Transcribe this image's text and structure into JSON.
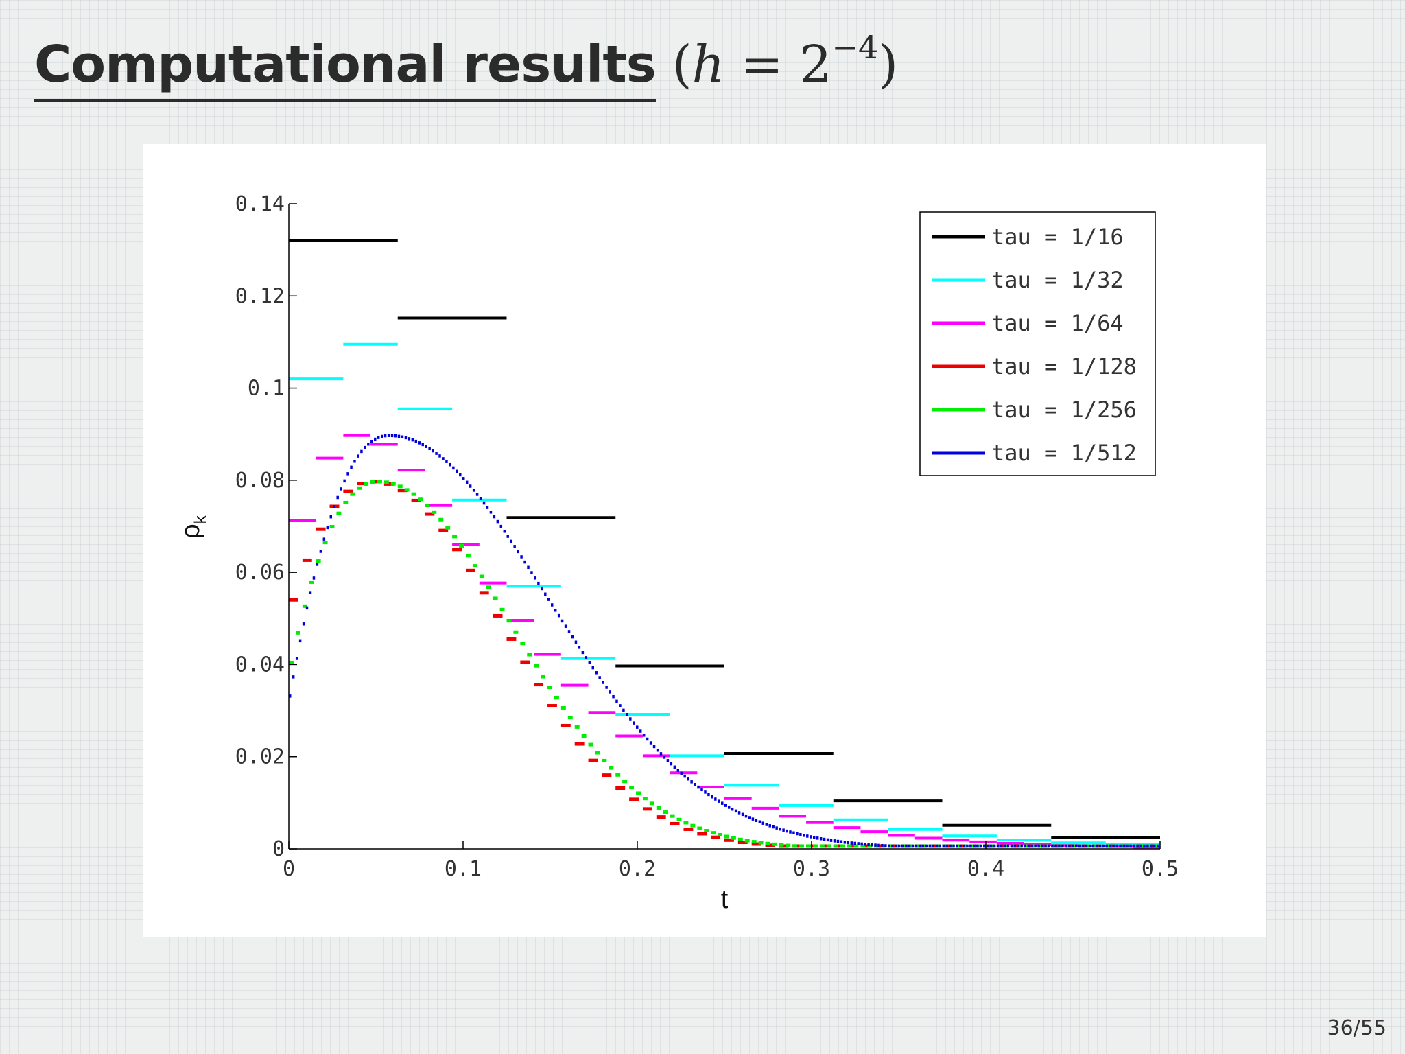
{
  "slide": {
    "title_main": "Computational results",
    "title_param_open": "(",
    "title_param_var": "h",
    "title_param_eq": " = 2",
    "title_param_exp": "−4",
    "title_param_close": ")",
    "page_number": "36/55"
  },
  "chart_data": {
    "type": "line",
    "title": "",
    "xlabel": "t",
    "ylabel_base": "ρ",
    "ylabel_sub": "k",
    "xlim": [
      0,
      0.5
    ],
    "ylim": [
      0,
      0.14
    ],
    "x_ticks": [
      0,
      0.1,
      0.2,
      0.3,
      0.4,
      0.5
    ],
    "x_tick_labels": [
      "0",
      "0.1",
      "0.2",
      "0.3",
      "0.4",
      "0.5"
    ],
    "y_ticks": [
      0,
      0.02,
      0.04,
      0.06,
      0.08,
      0.1,
      0.12,
      0.14
    ],
    "y_tick_labels": [
      "0",
      "0.02",
      "0.04",
      "0.06",
      "0.08",
      "0.1",
      "0.12",
      "0.14"
    ],
    "grid": false,
    "legend_position": "top-right",
    "series": [
      {
        "name": "tau = 1/16",
        "color": "#000000",
        "tau": 0.0625,
        "style": "steps",
        "values": [
          0.132,
          0.1152,
          0.0719,
          0.0397,
          0.0207,
          0.0104,
          0.0051,
          0.0024
        ]
      },
      {
        "name": "tau = 1/32",
        "color": "#00ffff",
        "tau": 0.03125,
        "style": "steps",
        "values": [
          0.102,
          0.1095,
          0.0955,
          0.0757,
          0.057,
          0.0413,
          0.0292,
          0.0202,
          0.0138,
          0.0094,
          0.0063,
          0.0042,
          0.0028,
          0.0019,
          0.0013,
          0.0009
        ]
      },
      {
        "name": "tau = 1/64",
        "color": "#ff00ff",
        "tau": 0.015625,
        "style": "steps",
        "values": [
          0.0712,
          0.0848,
          0.0897,
          0.0878,
          0.0822,
          0.0745,
          0.0661,
          0.0577,
          0.0496,
          0.0422,
          0.0355,
          0.0296,
          0.0245,
          0.0202,
          0.0165,
          0.0134,
          0.0109,
          0.0088,
          0.0071,
          0.0057,
          0.0046,
          0.0037,
          0.0029,
          0.0023,
          0.0019,
          0.0015,
          0.0012,
          0.0009,
          0.0007,
          0.0006,
          0.0005,
          0.0004
        ]
      },
      {
        "name": "tau = 1/128",
        "color": "#ee0000",
        "tau": 0.0078125,
        "style": "steps",
        "model": {
          "peak_t": 0.05,
          "peak_v": 0.0797,
          "first": 0.049,
          "rise": 0.012,
          "decay": 0.1
        }
      },
      {
        "name": "tau = 1/256",
        "color": "#00ee00",
        "tau": 0.00390625,
        "style": "steps",
        "model": {
          "peak_t": 0.052,
          "peak_v": 0.0797,
          "first": 0.037,
          "rise": 0.011,
          "decay": 0.103
        }
      },
      {
        "name": "tau = 1/512",
        "color": "#0000dd",
        "tau": 0.001953125,
        "style": "steps",
        "model": {
          "peak_t": 0.058,
          "peak_v": 0.0897,
          "first": 0.031,
          "rise": 0.011,
          "decay": 0.122
        }
      }
    ]
  }
}
